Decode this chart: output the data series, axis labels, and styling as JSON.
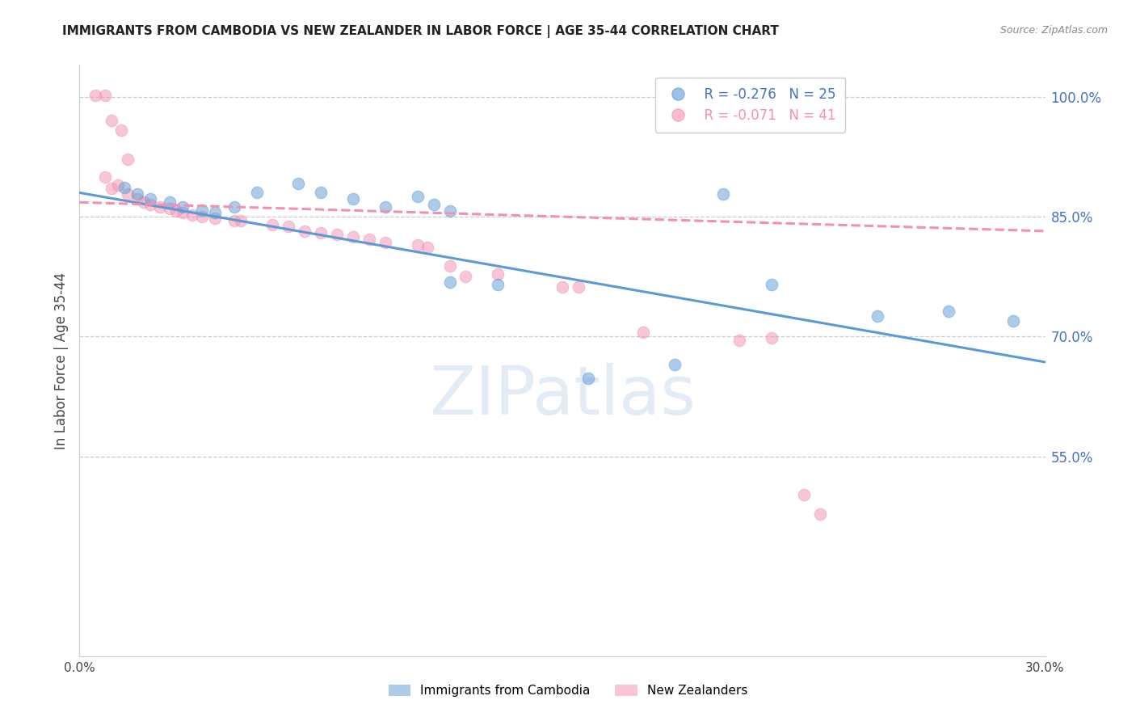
{
  "title": "IMMIGRANTS FROM CAMBODIA VS NEW ZEALANDER IN LABOR FORCE | AGE 35-44 CORRELATION CHART",
  "source": "Source: ZipAtlas.com",
  "ylabel_label": "In Labor Force | Age 35-44",
  "x_min": 0.0,
  "x_max": 0.3,
  "y_min": 0.3,
  "y_max": 1.04,
  "yticks": [
    0.55,
    0.7,
    0.85,
    1.0
  ],
  "ytick_labels": [
    "55.0%",
    "70.0%",
    "85.0%",
    "100.0%"
  ],
  "xticks": [
    0.0,
    0.05,
    0.1,
    0.15,
    0.2,
    0.25,
    0.3
  ],
  "xtick_labels": [
    "0.0%",
    "",
    "",
    "",
    "",
    "",
    "30.0%"
  ],
  "background_color": "#ffffff",
  "watermark_text": "ZIPatlas",
  "blue_color": "#5b9bd5",
  "pink_color": "#f48fb1",
  "blue_scatter": [
    [
      0.014,
      0.886
    ],
    [
      0.018,
      0.878
    ],
    [
      0.022,
      0.872
    ],
    [
      0.028,
      0.868
    ],
    [
      0.032,
      0.862
    ],
    [
      0.038,
      0.858
    ],
    [
      0.042,
      0.855
    ],
    [
      0.048,
      0.862
    ],
    [
      0.055,
      0.88
    ],
    [
      0.068,
      0.892
    ],
    [
      0.075,
      0.88
    ],
    [
      0.085,
      0.872
    ],
    [
      0.095,
      0.862
    ],
    [
      0.105,
      0.875
    ],
    [
      0.11,
      0.865
    ],
    [
      0.115,
      0.857
    ],
    [
      0.115,
      0.768
    ],
    [
      0.13,
      0.765
    ],
    [
      0.158,
      0.648
    ],
    [
      0.185,
      0.665
    ],
    [
      0.2,
      0.878
    ],
    [
      0.215,
      0.765
    ],
    [
      0.248,
      0.726
    ],
    [
      0.27,
      0.732
    ],
    [
      0.29,
      0.72
    ]
  ],
  "pink_scatter": [
    [
      0.005,
      1.002
    ],
    [
      0.008,
      1.002
    ],
    [
      0.01,
      0.97
    ],
    [
      0.013,
      0.958
    ],
    [
      0.015,
      0.922
    ],
    [
      0.008,
      0.9
    ],
    [
      0.01,
      0.885
    ],
    [
      0.012,
      0.89
    ],
    [
      0.015,
      0.878
    ],
    [
      0.018,
      0.872
    ],
    [
      0.02,
      0.868
    ],
    [
      0.022,
      0.865
    ],
    [
      0.025,
      0.862
    ],
    [
      0.028,
      0.86
    ],
    [
      0.03,
      0.857
    ],
    [
      0.032,
      0.855
    ],
    [
      0.035,
      0.852
    ],
    [
      0.038,
      0.85
    ],
    [
      0.042,
      0.848
    ],
    [
      0.048,
      0.845
    ],
    [
      0.05,
      0.845
    ],
    [
      0.06,
      0.84
    ],
    [
      0.065,
      0.838
    ],
    [
      0.07,
      0.832
    ],
    [
      0.075,
      0.83
    ],
    [
      0.08,
      0.828
    ],
    [
      0.085,
      0.825
    ],
    [
      0.09,
      0.822
    ],
    [
      0.095,
      0.818
    ],
    [
      0.105,
      0.815
    ],
    [
      0.108,
      0.812
    ],
    [
      0.115,
      0.788
    ],
    [
      0.12,
      0.775
    ],
    [
      0.13,
      0.778
    ],
    [
      0.15,
      0.762
    ],
    [
      0.155,
      0.762
    ],
    [
      0.175,
      0.705
    ],
    [
      0.205,
      0.695
    ],
    [
      0.215,
      0.698
    ],
    [
      0.225,
      0.502
    ],
    [
      0.23,
      0.478
    ]
  ],
  "blue_line_x": [
    0.0,
    0.3
  ],
  "blue_line_y": [
    0.88,
    0.668
  ],
  "pink_line_x": [
    0.0,
    0.3
  ],
  "pink_line_y": [
    0.868,
    0.832
  ]
}
